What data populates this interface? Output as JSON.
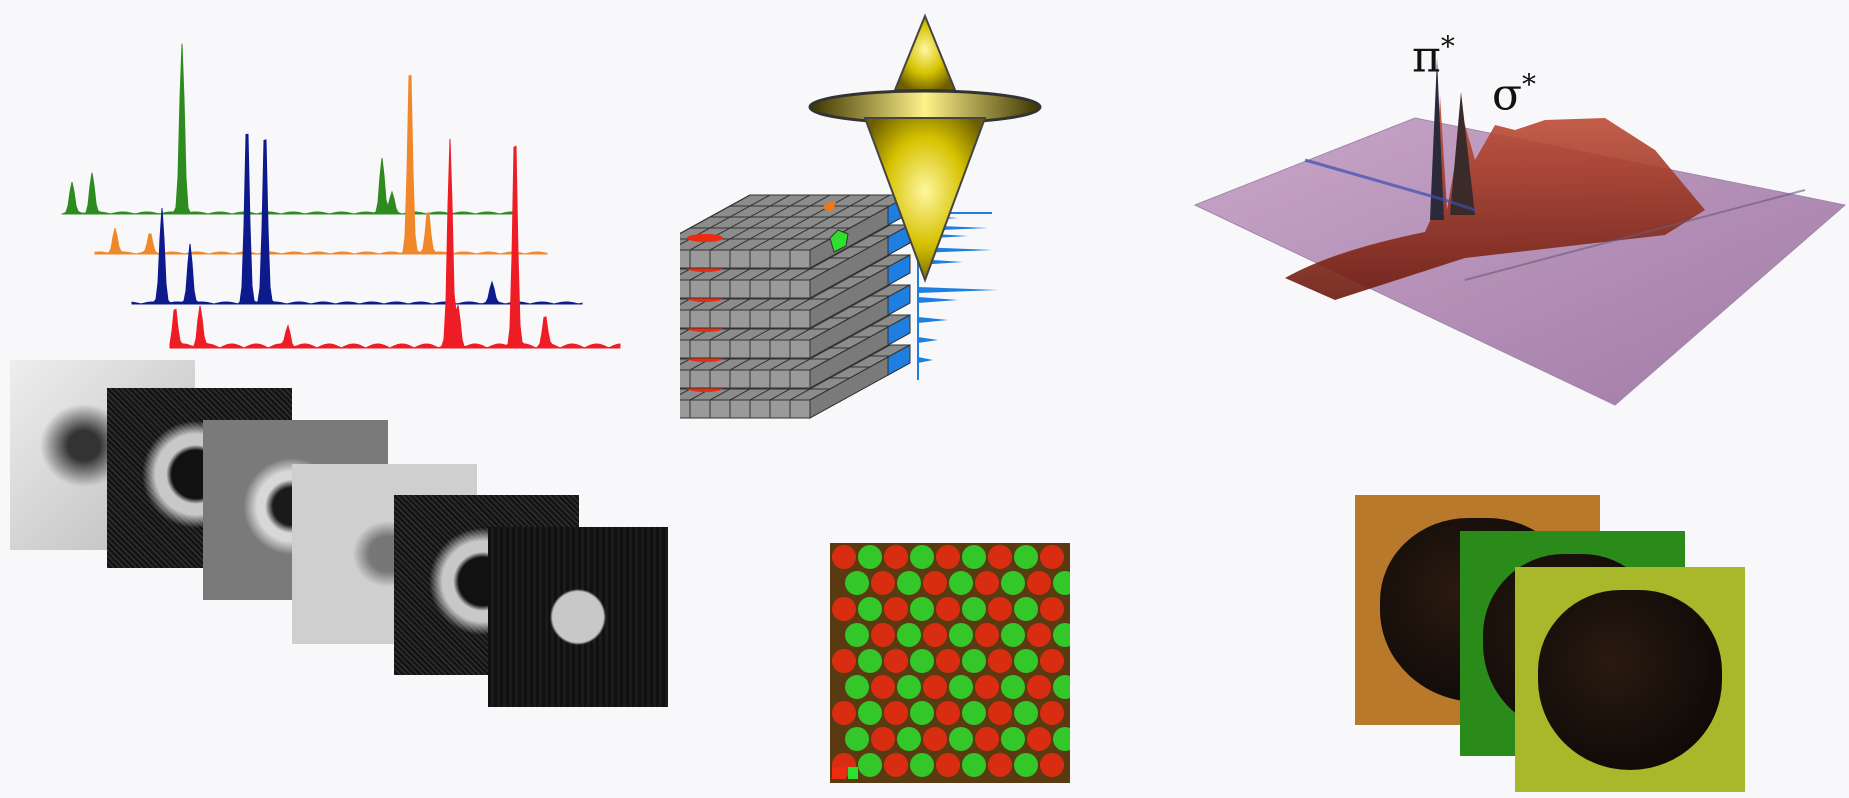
{
  "spectra": {
    "series": [
      {
        "name": "",
        "color": "#2e8b1f"
      },
      {
        "name": "",
        "color": "#f0882a"
      },
      {
        "name": "",
        "color": "#0d1a8c"
      },
      {
        "name": "",
        "color": "#ee1c24"
      }
    ]
  },
  "image_stack": {
    "tiles": [
      {
        "style": "bright-field",
        "tone": "#d8d8d8"
      },
      {
        "style": "noisy-ring",
        "tone": "#151515"
      },
      {
        "style": "gray-ring",
        "tone": "#7a7a7a"
      },
      {
        "style": "light-blob",
        "tone": "#c9c9c9"
      },
      {
        "style": "noisy-ring",
        "tone": "#1c1c1c"
      },
      {
        "style": "dark-square",
        "tone": "#0c0c0c"
      }
    ]
  },
  "cube": {
    "cone_color": "#d6c200",
    "grid_color": "#8a8a8a",
    "side_color": "#1f7fe0",
    "feature_colors": [
      "#ee2b10",
      "#2ee02e",
      "#f07818"
    ]
  },
  "surface": {
    "peak_labels": [
      {
        "symbol": "π",
        "sup": "*"
      },
      {
        "symbol": "σ",
        "sup": "*"
      }
    ],
    "colors": {
      "plane": "#b58fb5",
      "ridge": "#a5331c",
      "shadow": "#3b4fb0"
    }
  },
  "lattice": {
    "colors": [
      "#ee2b10",
      "#2ee02e"
    ]
  },
  "overlay_stack": {
    "colors": [
      "#b87a2a",
      "#2a8a1a",
      "#a8b82a"
    ]
  }
}
